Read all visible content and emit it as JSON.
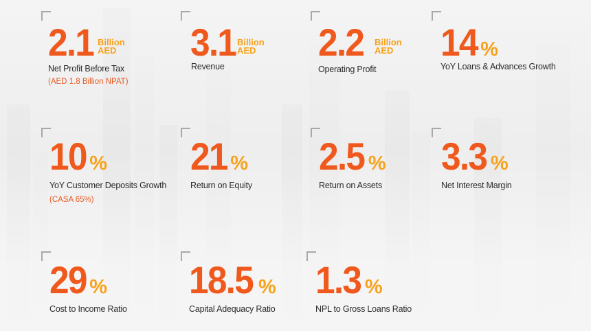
{
  "metrics": [
    {
      "value": "2.1",
      "unit_line1": "Billion",
      "unit_line2": "AED",
      "label": "Net Profit Before Tax",
      "note": "(AED 1.8 Billion NPAT)"
    },
    {
      "value": "3.1",
      "unit_line1": "Billion",
      "unit_line2": "AED",
      "label": "Revenue"
    },
    {
      "value": "2.2",
      "unit_line1": "Billion",
      "unit_line2": "AED",
      "label": "Operating Profit"
    },
    {
      "value": "14",
      "suffix": "%",
      "label": "YoY Loans & Advances Growth"
    },
    {
      "value": "10",
      "suffix": "%",
      "label": "YoY Customer Deposits Growth",
      "note": "(CASA 65%)"
    },
    {
      "value": "21",
      "suffix": "%",
      "label": "Return on Equity"
    },
    {
      "value": "2.5",
      "suffix": "%",
      "label": "Return on Assets"
    },
    {
      "value": "3.3",
      "suffix": "%",
      "label": "Net Interest Margin"
    },
    {
      "value": "29",
      "suffix": "%",
      "label": "Cost to Income Ratio"
    },
    {
      "value": "18.5",
      "suffix": "%",
      "label": "Capital Adequacy Ratio"
    },
    {
      "value": "1.3",
      "suffix": "%",
      "label": "NPL to Gross Loans Ratio"
    }
  ],
  "colors": {
    "value": "#f0591d",
    "unit": "#f7a21b",
    "label": "#2b2b2b",
    "note": "#e85b25"
  }
}
